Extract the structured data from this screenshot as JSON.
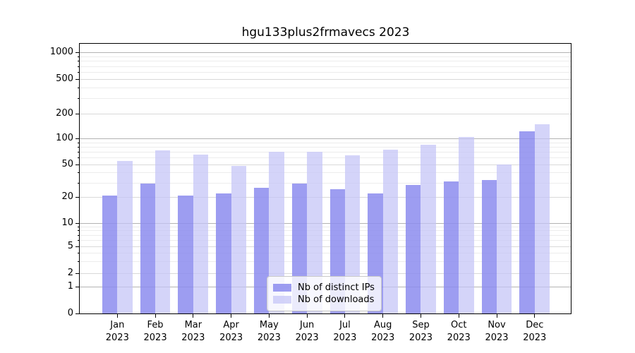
{
  "chart_data": {
    "type": "bar",
    "title": "hgu133plus2frmavecs 2023",
    "categories": [
      "Jan 2023",
      "Feb 2023",
      "Mar 2023",
      "Apr 2023",
      "May 2023",
      "Jun 2023",
      "Jul 2023",
      "Aug 2023",
      "Sep 2023",
      "Oct 2023",
      "Nov 2023",
      "Dec 2023"
    ],
    "months": [
      "Jan",
      "Feb",
      "Mar",
      "Apr",
      "May",
      "Jun",
      "Jul",
      "Aug",
      "Sep",
      "Oct",
      "Nov",
      "Dec"
    ],
    "year": "2023",
    "series": [
      {
        "name": "Nb of distinct IPs",
        "color": "rgba(140,140,238,0.85)",
        "values": [
          21,
          29,
          21,
          22,
          26,
          29,
          25,
          22,
          28,
          31,
          32,
          122
        ]
      },
      {
        "name": "Nb of downloads",
        "color": "rgba(196,196,246,0.72)",
        "values": [
          55,
          73,
          65,
          48,
          70,
          70,
          64,
          74,
          85,
          104,
          50,
          150
        ]
      }
    ],
    "y_axis": {
      "scale": "symlog",
      "ticks": [
        0,
        1,
        2,
        5,
        10,
        20,
        50,
        100,
        200,
        500,
        1000
      ],
      "minor_ticks": [
        3,
        4,
        6,
        7,
        8,
        9,
        30,
        40,
        60,
        70,
        80,
        90,
        300,
        400,
        600,
        700,
        800,
        900
      ],
      "ylim": [
        0,
        1400
      ]
    },
    "grid": true,
    "legend_position": "lower center"
  }
}
